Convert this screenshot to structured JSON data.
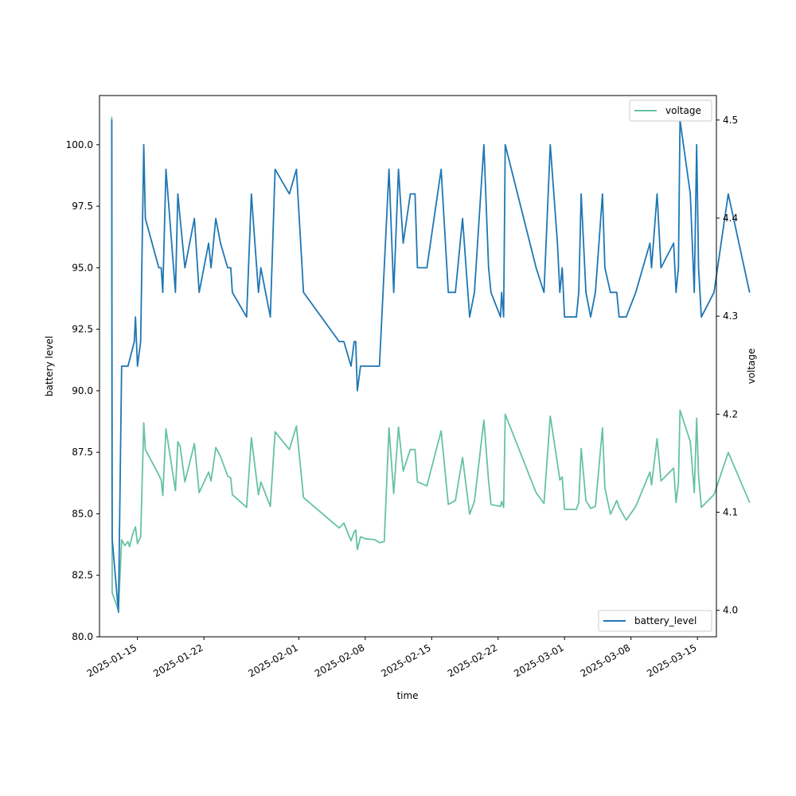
{
  "chart_data": {
    "type": "line",
    "xlabel": "time",
    "ylabel_left": "battery level",
    "ylabel_right": "voltage",
    "x_ticks": [
      "2025-01-15",
      "2025-01-22",
      "2025-02-01",
      "2025-02-08",
      "2025-02-15",
      "2025-02-22",
      "2025-03-01",
      "2025-03-08",
      "2025-03-15"
    ],
    "x_range": [
      "2025-01-11T00:00",
      "2025-03-17T00:00"
    ],
    "y_left_ticks": [
      "80.0",
      "82.5",
      "85.0",
      "87.5",
      "90.0",
      "92.5",
      "95.0",
      "97.5",
      "100.0"
    ],
    "y_left_range": [
      80.0,
      102.0
    ],
    "y_right_ticks": [
      "4.0",
      "4.1",
      "4.2",
      "4.3",
      "4.4",
      "4.5"
    ],
    "y_right_range": [
      3.973,
      4.525
    ],
    "legends": [
      {
        "series": "voltage",
        "label": "voltage",
        "placement": "upper-right"
      },
      {
        "series": "battery_level",
        "label": "battery_level",
        "placement": "lower-right"
      }
    ],
    "series": [
      {
        "name": "battery_level",
        "axis": "left",
        "color": "#1f77b4",
        "points": [
          [
            "2025-01-12T07:00",
            101.0
          ],
          [
            "2025-01-12T08:00",
            84.0
          ],
          [
            "2025-01-13T00:00",
            81.0
          ],
          [
            "2025-01-13T08:00",
            91.0
          ],
          [
            "2025-01-13T12:00",
            91.0
          ],
          [
            "2025-01-14T00:00",
            91.0
          ],
          [
            "2025-01-14T16:00",
            92.0
          ],
          [
            "2025-01-14T19:00",
            93.0
          ],
          [
            "2025-01-15T00:00",
            91.0
          ],
          [
            "2025-01-15T08:00",
            92.0
          ],
          [
            "2025-01-15T16:00",
            100.0
          ],
          [
            "2025-01-15T20:00",
            97.0
          ],
          [
            "2025-01-17T06:00",
            95.0
          ],
          [
            "2025-01-17T12:00",
            95.0
          ],
          [
            "2025-01-17T16:00",
            94.0
          ],
          [
            "2025-01-18T00:00",
            99.0
          ],
          [
            "2025-01-19T00:00",
            94.0
          ],
          [
            "2025-01-19T06:00",
            98.0
          ],
          [
            "2025-01-19T12:00",
            97.0
          ],
          [
            "2025-01-20T00:00",
            95.0
          ],
          [
            "2025-01-21T00:00",
            97.0
          ],
          [
            "2025-01-21T12:00",
            94.0
          ],
          [
            "2025-01-22T12:00",
            96.0
          ],
          [
            "2025-01-22T18:00",
            95.0
          ],
          [
            "2025-01-23T06:00",
            97.0
          ],
          [
            "2025-01-23T18:00",
            96.0
          ],
          [
            "2025-01-24T12:00",
            95.0
          ],
          [
            "2025-01-24T20:00",
            95.0
          ],
          [
            "2025-01-25T00:00",
            94.0
          ],
          [
            "2025-01-26T12:00",
            93.0
          ],
          [
            "2025-01-27T00:00",
            98.0
          ],
          [
            "2025-01-27T18:00",
            94.0
          ],
          [
            "2025-01-28T00:00",
            95.0
          ],
          [
            "2025-01-29T00:00",
            93.0
          ],
          [
            "2025-01-29T12:00",
            99.0
          ],
          [
            "2025-01-31T00:00",
            98.0
          ],
          [
            "2025-01-31T18:00",
            99.0
          ],
          [
            "2025-02-01T12:00",
            94.0
          ],
          [
            "2025-02-05T06:00",
            92.0
          ],
          [
            "2025-02-05T18:00",
            92.0
          ],
          [
            "2025-02-06T12:00",
            91.0
          ],
          [
            "2025-02-06T20:00",
            92.0
          ],
          [
            "2025-02-07T00:00",
            92.0
          ],
          [
            "2025-02-07T04:00",
            90.0
          ],
          [
            "2025-02-07T12:00",
            91.0
          ],
          [
            "2025-02-08T00:00",
            91.0
          ],
          [
            "2025-02-09T00:00",
            91.0
          ],
          [
            "2025-02-09T12:00",
            91.0
          ],
          [
            "2025-02-10T12:00",
            99.0
          ],
          [
            "2025-02-11T00:00",
            94.0
          ],
          [
            "2025-02-11T12:00",
            99.0
          ],
          [
            "2025-02-12T00:00",
            96.0
          ],
          [
            "2025-02-12T18:00",
            98.0
          ],
          [
            "2025-02-13T06:00",
            98.0
          ],
          [
            "2025-02-13T12:00",
            95.0
          ],
          [
            "2025-02-14T12:00",
            95.0
          ],
          [
            "2025-02-16T00:00",
            99.0
          ],
          [
            "2025-02-16T18:00",
            94.0
          ],
          [
            "2025-02-17T12:00",
            94.0
          ],
          [
            "2025-02-18T06:00",
            97.0
          ],
          [
            "2025-02-19T00:00",
            93.0
          ],
          [
            "2025-02-19T12:00",
            94.0
          ],
          [
            "2025-02-20T12:00",
            100.0
          ],
          [
            "2025-02-21T00:00",
            95.0
          ],
          [
            "2025-02-21T06:00",
            94.0
          ],
          [
            "2025-02-22T06:00",
            93.0
          ],
          [
            "2025-02-22T09:00",
            94.0
          ],
          [
            "2025-02-22T14:00",
            93.0
          ],
          [
            "2025-02-22T18:00",
            100.0
          ],
          [
            "2025-02-26T00:00",
            95.0
          ],
          [
            "2025-02-26T20:00",
            94.0
          ],
          [
            "2025-02-27T12:00",
            100.0
          ],
          [
            "2025-02-28T06:00",
            96.0
          ],
          [
            "2025-02-28T12:00",
            94.0
          ],
          [
            "2025-02-28T18:00",
            95.0
          ],
          [
            "2025-03-01T00:00",
            93.0
          ],
          [
            "2025-03-02T06:00",
            93.0
          ],
          [
            "2025-03-02T12:00",
            94.0
          ],
          [
            "2025-03-02T18:00",
            98.0
          ],
          [
            "2025-03-03T06:00",
            94.0
          ],
          [
            "2025-03-03T18:00",
            93.0
          ],
          [
            "2025-03-04T06:00",
            94.0
          ],
          [
            "2025-03-05T00:00",
            98.0
          ],
          [
            "2025-03-05T06:00",
            95.0
          ],
          [
            "2025-03-05T20:00",
            94.0
          ],
          [
            "2025-03-06T12:00",
            94.0
          ],
          [
            "2025-03-06T18:00",
            93.0
          ],
          [
            "2025-03-07T12:00",
            93.0
          ],
          [
            "2025-03-08T12:00",
            94.0
          ],
          [
            "2025-03-10T00:00",
            96.0
          ],
          [
            "2025-03-10T04:00",
            95.0
          ],
          [
            "2025-03-10T18:00",
            98.0
          ],
          [
            "2025-03-11T04:00",
            95.0
          ],
          [
            "2025-03-12T12:00",
            96.0
          ],
          [
            "2025-03-12T18:00",
            94.0
          ],
          [
            "2025-03-13T00:00",
            95.0
          ],
          [
            "2025-03-13T04:00",
            101.0
          ],
          [
            "2025-03-14T06:00",
            98.0
          ],
          [
            "2025-03-14T16:00",
            94.0
          ],
          [
            "2025-03-14T22:00",
            100.0
          ],
          [
            "2025-03-15T03:00",
            95.0
          ],
          [
            "2025-03-15T10:00",
            93.0
          ],
          [
            "2025-03-16T18:00",
            94.0
          ],
          [
            "2025-03-18T06:00",
            98.0
          ],
          [
            "2025-03-20T12:00",
            94.0
          ]
        ]
      },
      {
        "name": "voltage",
        "axis": "right",
        "color": "#66c2a5",
        "points": [
          [
            "2025-01-12T07:00",
            4.503
          ],
          [
            "2025-01-12T08:00",
            4.018
          ],
          [
            "2025-01-13T00:00",
            4.0
          ],
          [
            "2025-01-13T08:00",
            4.072
          ],
          [
            "2025-01-13T16:00",
            4.066
          ],
          [
            "2025-01-14T00:00",
            4.07
          ],
          [
            "2025-01-14T04:00",
            4.065
          ],
          [
            "2025-01-14T12:00",
            4.078
          ],
          [
            "2025-01-14T19:00",
            4.085
          ],
          [
            "2025-01-15T00:00",
            4.068
          ],
          [
            "2025-01-15T08:00",
            4.075
          ],
          [
            "2025-01-15T16:00",
            4.191
          ],
          [
            "2025-01-15T20:00",
            4.164
          ],
          [
            "2025-01-17T06:00",
            4.138
          ],
          [
            "2025-01-17T12:00",
            4.133
          ],
          [
            "2025-01-17T16:00",
            4.117
          ],
          [
            "2025-01-18T00:00",
            4.185
          ],
          [
            "2025-01-19T00:00",
            4.122
          ],
          [
            "2025-01-19T06:00",
            4.172
          ],
          [
            "2025-01-19T12:00",
            4.167
          ],
          [
            "2025-01-20T00:00",
            4.131
          ],
          [
            "2025-01-21T00:00",
            4.17
          ],
          [
            "2025-01-21T12:00",
            4.12
          ],
          [
            "2025-01-22T12:00",
            4.141
          ],
          [
            "2025-01-22T18:00",
            4.132
          ],
          [
            "2025-01-23T06:00",
            4.166
          ],
          [
            "2025-01-23T18:00",
            4.157
          ],
          [
            "2025-01-24T12:00",
            4.137
          ],
          [
            "2025-01-24T20:00",
            4.135
          ],
          [
            "2025-01-25T00:00",
            4.118
          ],
          [
            "2025-01-26T12:00",
            4.105
          ],
          [
            "2025-01-27T00:00",
            4.176
          ],
          [
            "2025-01-27T18:00",
            4.118
          ],
          [
            "2025-01-28T00:00",
            4.131
          ],
          [
            "2025-01-29T00:00",
            4.106
          ],
          [
            "2025-01-29T12:00",
            4.182
          ],
          [
            "2025-01-31T00:00",
            4.164
          ],
          [
            "2025-01-31T18:00",
            4.188
          ],
          [
            "2025-02-01T12:00",
            4.115
          ],
          [
            "2025-02-05T06:00",
            4.084
          ],
          [
            "2025-02-05T18:00",
            4.089
          ],
          [
            "2025-02-06T12:00",
            4.071
          ],
          [
            "2025-02-06T20:00",
            4.08
          ],
          [
            "2025-02-07T00:00",
            4.082
          ],
          [
            "2025-02-07T04:00",
            4.062
          ],
          [
            "2025-02-07T12:00",
            4.075
          ],
          [
            "2025-02-08T00:00",
            4.073
          ],
          [
            "2025-02-09T00:00",
            4.072
          ],
          [
            "2025-02-09T12:00",
            4.069
          ],
          [
            "2025-02-10T00:00",
            4.07
          ],
          [
            "2025-02-10T12:00",
            4.186
          ],
          [
            "2025-02-11T00:00",
            4.119
          ],
          [
            "2025-02-11T12:00",
            4.187
          ],
          [
            "2025-02-12T00:00",
            4.142
          ],
          [
            "2025-02-12T18:00",
            4.164
          ],
          [
            "2025-02-13T06:00",
            4.164
          ],
          [
            "2025-02-13T12:00",
            4.131
          ],
          [
            "2025-02-14T12:00",
            4.127
          ],
          [
            "2025-02-16T00:00",
            4.183
          ],
          [
            "2025-02-16T18:00",
            4.108
          ],
          [
            "2025-02-17T12:00",
            4.112
          ],
          [
            "2025-02-18T06:00",
            4.156
          ],
          [
            "2025-02-19T00:00",
            4.098
          ],
          [
            "2025-02-19T12:00",
            4.111
          ],
          [
            "2025-02-20T12:00",
            4.194
          ],
          [
            "2025-02-21T00:00",
            4.132
          ],
          [
            "2025-02-21T06:00",
            4.108
          ],
          [
            "2025-02-22T06:00",
            4.106
          ],
          [
            "2025-02-22T09:00",
            4.111
          ],
          [
            "2025-02-22T14:00",
            4.105
          ],
          [
            "2025-02-22T18:00",
            4.2
          ],
          [
            "2025-02-26T00:00",
            4.12
          ],
          [
            "2025-02-26T20:00",
            4.109
          ],
          [
            "2025-02-27T12:00",
            4.198
          ],
          [
            "2025-02-28T06:00",
            4.15
          ],
          [
            "2025-02-28T12:00",
            4.133
          ],
          [
            "2025-02-28T18:00",
            4.136
          ],
          [
            "2025-03-01T00:00",
            4.103
          ],
          [
            "2025-03-02T06:00",
            4.103
          ],
          [
            "2025-03-02T12:00",
            4.11
          ],
          [
            "2025-03-02T18:00",
            4.165
          ],
          [
            "2025-03-03T06:00",
            4.112
          ],
          [
            "2025-03-03T18:00",
            4.104
          ],
          [
            "2025-03-04T06:00",
            4.106
          ],
          [
            "2025-03-05T00:00",
            4.186
          ],
          [
            "2025-03-05T06:00",
            4.125
          ],
          [
            "2025-03-05T20:00",
            4.098
          ],
          [
            "2025-03-06T12:00",
            4.112
          ],
          [
            "2025-03-06T18:00",
            4.105
          ],
          [
            "2025-03-07T12:00",
            4.092
          ],
          [
            "2025-03-08T12:00",
            4.106
          ],
          [
            "2025-03-10T00:00",
            4.141
          ],
          [
            "2025-03-10T04:00",
            4.128
          ],
          [
            "2025-03-10T18:00",
            4.175
          ],
          [
            "2025-03-11T04:00",
            4.132
          ],
          [
            "2025-03-12T12:00",
            4.145
          ],
          [
            "2025-03-12T18:00",
            4.11
          ],
          [
            "2025-03-13T00:00",
            4.13
          ],
          [
            "2025-03-13T04:00",
            4.204
          ],
          [
            "2025-03-14T06:00",
            4.172
          ],
          [
            "2025-03-14T16:00",
            4.12
          ],
          [
            "2025-03-14T22:00",
            4.196
          ],
          [
            "2025-03-15T03:00",
            4.137
          ],
          [
            "2025-03-15T10:00",
            4.105
          ],
          [
            "2025-03-16T18:00",
            4.118
          ],
          [
            "2025-03-18T06:00",
            4.161
          ],
          [
            "2025-03-20T12:00",
            4.11
          ]
        ]
      }
    ]
  }
}
